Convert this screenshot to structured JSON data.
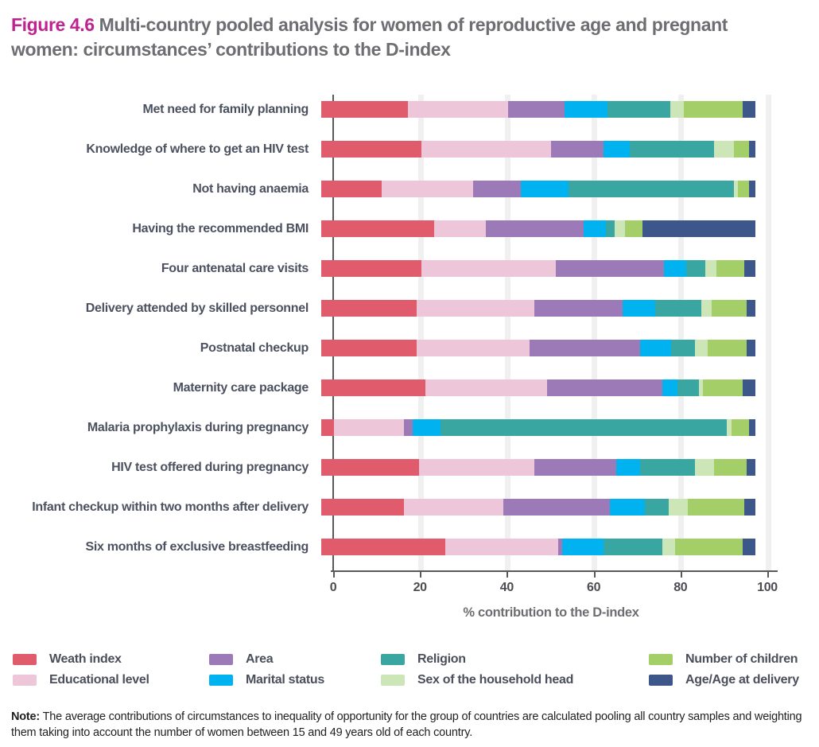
{
  "title": {
    "prefix": "Figure 4.6",
    "text": " Multi-country pooled analysis for women of reproductive age and pregnant women: circumstances’ contributions to the D-index"
  },
  "chart_data": {
    "type": "bar",
    "stacked": true,
    "orientation": "horizontal",
    "title": "Figure 4.6 Multi-country pooled analysis for women of reproductive age and pregnant women: circumstances’ contributions to the D-index",
    "xlabel": "% contribution to the D-index",
    "xlim": [
      0,
      100
    ],
    "xticks": [
      0,
      20,
      40,
      60,
      80,
      100
    ],
    "grid": true,
    "legend_position": "bottom",
    "categories": [
      "Met need for family planning",
      "Knowledge of where to get an HIV test",
      "Not having anaemia",
      "Having the recommended BMI",
      "Four antenatal care visits",
      "Delivery attended by skilled personnel",
      "Postnatal checkup",
      "Maternity care package",
      "Malaria prophylaxis during pregnancy",
      "HIV test offered during pregnancy",
      "Infant checkup within two months after delivery",
      "Six months of exclusive breastfeeding"
    ],
    "series": [
      {
        "name": "Weath index",
        "color": "#E05C6D",
        "values": [
          20,
          23,
          14,
          26,
          23,
          22,
          22,
          24,
          3,
          22.5,
          19,
          28.5
        ]
      },
      {
        "name": "Educational level",
        "color": "#EDC6DA",
        "values": [
          23,
          30,
          21,
          12,
          31,
          27,
          26,
          28,
          16,
          26.5,
          23,
          26
        ]
      },
      {
        "name": "Area",
        "color": "#9C7AB8",
        "values": [
          13,
          12,
          11,
          22.5,
          25,
          20.5,
          25.5,
          26.5,
          2,
          19,
          24.5,
          1
        ]
      },
      {
        "name": "Marital status",
        "color": "#00B2EF",
        "values": [
          10,
          6,
          11,
          5,
          5,
          7.5,
          7,
          3.5,
          6.5,
          5.5,
          8,
          9.5
        ]
      },
      {
        "name": "Religion",
        "color": "#3AA6A1",
        "values": [
          14.5,
          19.5,
          38,
          2,
          4.5,
          10.5,
          5.5,
          5,
          66,
          12.5,
          5.5,
          13.5
        ]
      },
      {
        "name": "Sex of the household head",
        "color": "#CCE6B7",
        "values": [
          3,
          4.5,
          1,
          2.5,
          2.5,
          2.5,
          3,
          1,
          1,
          4.5,
          4.5,
          3
        ]
      },
      {
        "name": "Number of children",
        "color": "#A3CE68",
        "values": [
          13.5,
          3.5,
          2.5,
          4,
          6.5,
          8,
          9,
          9,
          4,
          7.5,
          13,
          15.5
        ]
      },
      {
        "name": "Age/Age at delivery",
        "color": "#3D578A",
        "values": [
          3,
          1.5,
          1.5,
          26,
          2.5,
          2,
          2,
          3,
          1.5,
          2,
          2.5,
          3
        ]
      }
    ]
  },
  "note": {
    "label": "Note:",
    "text": " The average contributions of circumstances to inequality of opportunity for the group of countries are calculated pooling all country samples and weighting them taking into account the number of women between 15 and 49 years old of each country."
  }
}
